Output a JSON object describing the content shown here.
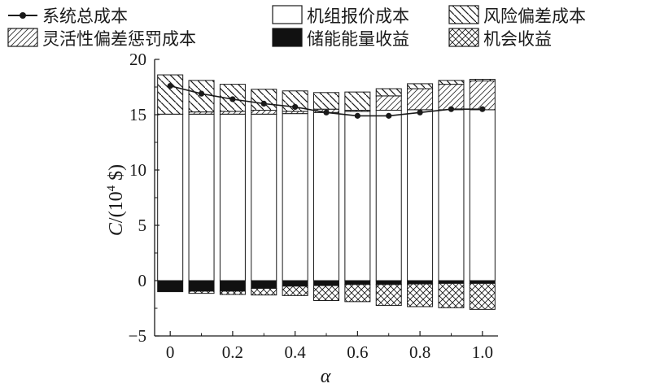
{
  "chart_data": {
    "type": "bar",
    "xlabel": "α",
    "ylabel_italic": "C",
    "ylabel_rest": "/(10",
    "ylabel_sup": "4",
    "ylabel_unit": " $)",
    "ylim": [
      -5,
      20
    ],
    "xlim": [
      -0.05,
      1.05
    ],
    "y_ticks": [
      -5,
      0,
      5,
      10,
      15,
      20
    ],
    "x_ticks": [
      0,
      0.2,
      0.4,
      0.6,
      0.8,
      1.0
    ],
    "x_tick_labels": [
      "0",
      "0.2",
      "0.4",
      "0.6",
      "0.8",
      "1.0"
    ],
    "grid": false,
    "legend_position": "top",
    "x": [
      0,
      0.1,
      0.2,
      0.3,
      0.4,
      0.5,
      0.6,
      0.7,
      0.8,
      0.9,
      1.0
    ],
    "series": [
      {
        "name": "机组报价成本",
        "kind": "stack-positive",
        "pattern": "white",
        "values": [
          15.05,
          15.05,
          15.05,
          15.05,
          15.1,
          15.2,
          15.3,
          15.4,
          15.45,
          15.45,
          15.45
        ]
      },
      {
        "name": "灵活性偏差惩罚成本",
        "kind": "stack-positive",
        "pattern": "hatch-light",
        "values": [
          0.0,
          0.2,
          0.25,
          0.35,
          0.2,
          0.3,
          0.1,
          1.3,
          1.9,
          2.3,
          2.6
        ]
      },
      {
        "name": "风险偏差成本",
        "kind": "stack-positive",
        "pattern": "hatch-bold",
        "values": [
          3.55,
          2.85,
          2.45,
          1.9,
          1.85,
          1.5,
          1.65,
          0.65,
          0.45,
          0.35,
          0.15
        ]
      },
      {
        "name": "储能能量收益",
        "kind": "stack-negative",
        "pattern": "solid-black",
        "values": [
          -1.0,
          -0.95,
          -0.95,
          -0.7,
          -0.5,
          -0.45,
          -0.35,
          -0.35,
          -0.3,
          -0.25,
          -0.25
        ]
      },
      {
        "name": "机会收益",
        "kind": "stack-negative",
        "pattern": "crosshatch",
        "values": [
          0.0,
          -0.2,
          -0.3,
          -0.6,
          -0.85,
          -1.35,
          -1.55,
          -1.9,
          -2.05,
          -2.2,
          -2.35
        ]
      },
      {
        "name": "系统总成本",
        "kind": "line",
        "color": "#1a1a1a",
        "values": [
          17.6,
          16.9,
          16.4,
          16.0,
          15.7,
          15.2,
          14.9,
          14.9,
          15.2,
          15.5,
          15.5
        ]
      }
    ]
  }
}
